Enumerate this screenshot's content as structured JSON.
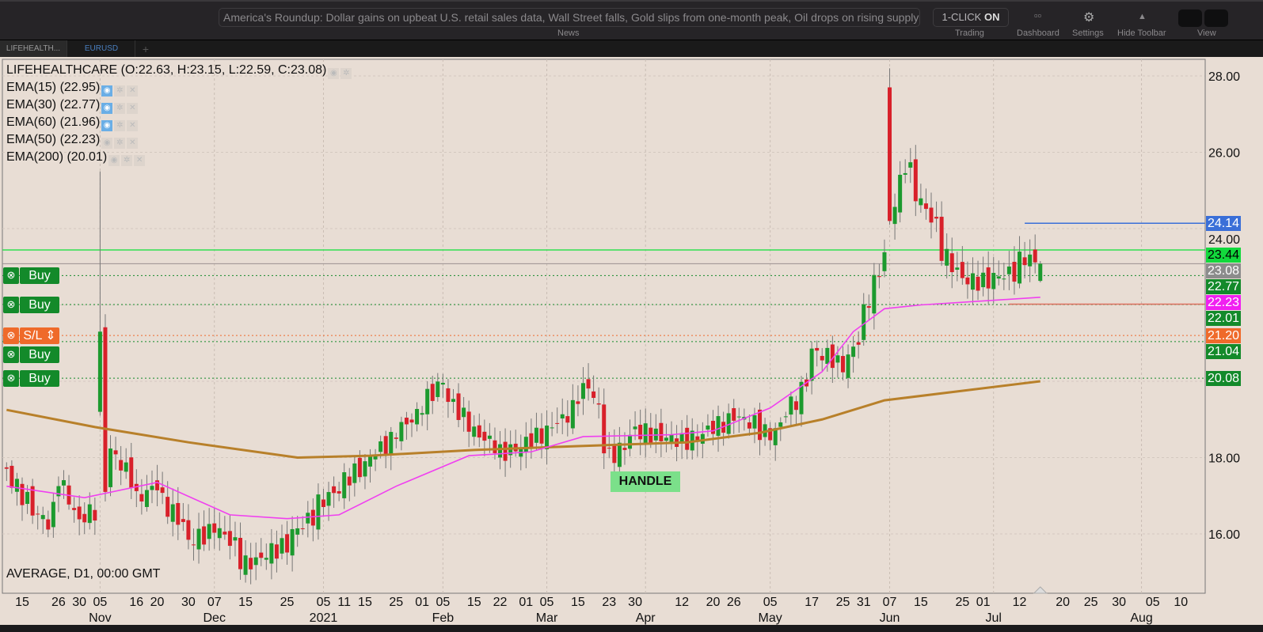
{
  "toolbar": {
    "news_text": "America's Roundup: Dollar gains on upbeat U.S. retail sales data, Wall Street falls, Gold slips from one-month peak, Oil drops on rising supply concerns",
    "news_label": "News",
    "oneclick_prefix": "1-CLICK",
    "oneclick_state": "ON",
    "trading_label": "Trading",
    "dashboard_label": "Dashboard",
    "settings_label": "Settings",
    "hide_toolbar_label": "Hide Toolbar",
    "view_label": "View"
  },
  "tabs": [
    {
      "label": "LIFEHEALTH...",
      "active": true
    },
    {
      "label": "EURUSD",
      "active": false
    },
    {
      "label": "+"
    }
  ],
  "legend": {
    "symbol": "LIFEHEALTHCARE (O:22.63, H:23.15, L:22.59, C:23.08)",
    "indicators": [
      {
        "label": "EMA(15) (22.95)",
        "visible": true
      },
      {
        "label": "EMA(30) (22.77)",
        "visible": true
      },
      {
        "label": "EMA(60) (21.96)",
        "visible": true
      },
      {
        "label": "EMA(50) (22.23)",
        "visible": false
      },
      {
        "label": "EMA(200) (20.01)",
        "visible": false
      }
    ]
  },
  "footer_label": "AVERAGE, D1, 00:00 GMT",
  "annotation": "HANDLE",
  "orders": [
    {
      "label": "Buy",
      "price": 22.77,
      "type": "buy"
    },
    {
      "label": "Buy",
      "price": 22.01,
      "type": "buy"
    },
    {
      "label": "Buy",
      "price": 21.04,
      "type": "buy"
    },
    {
      "label": "S/L",
      "price": 21.2,
      "type": "sl"
    },
    {
      "label": "Buy",
      "price": 20.08,
      "type": "buy"
    }
  ],
  "price_tags": [
    {
      "text": "24.14",
      "color": "#3a6fd8"
    },
    {
      "text": "23.44",
      "color": "#12d83c",
      "fg": "#000"
    },
    {
      "text": "23.08",
      "color": "#8c8c8c"
    },
    {
      "text": "22.77",
      "color": "#138a2a"
    },
    {
      "text": "22.23",
      "color": "#f020f0"
    },
    {
      "text": "22.01",
      "color": "#138a2a"
    },
    {
      "text": "21.04",
      "color": "#138a2a"
    },
    {
      "text": "21.20",
      "color": "#ef6a2a"
    },
    {
      "text": "20.08",
      "color": "#138a2a"
    }
  ],
  "colors": {
    "up": "#1c9a2e",
    "down": "#d8202a",
    "ema_short": "#f040f0",
    "ema_long": "#b8802a",
    "resistance": "#30e050",
    "target": "#3a6fd8"
  },
  "chart_data": {
    "type": "candlestick",
    "y_ticks": [
      "28.00",
      "26.00",
      "24.00",
      "18.00",
      "16.00"
    ],
    "ylim": [
      15,
      28.5
    ],
    "x_ticks": [
      [
        "2020-10-15",
        "15"
      ],
      [
        "2020-10-26",
        "26"
      ],
      [
        "2020-10-30",
        "30"
      ],
      [
        "2020-11-05",
        "05"
      ],
      [
        "2020-11-16",
        "16"
      ],
      [
        "2020-11-20",
        "20"
      ],
      [
        "2020-11-30",
        "30"
      ],
      [
        "2020-12-07",
        "07"
      ],
      [
        "2020-12-15",
        "15"
      ],
      [
        "2020-12-25",
        "25"
      ],
      [
        "2021-01-05",
        "05"
      ],
      [
        "2021-01-11",
        "11"
      ],
      [
        "2021-01-15",
        "15"
      ],
      [
        "2021-01-25",
        "25"
      ],
      [
        "2021-02-01",
        "01"
      ],
      [
        "2021-02-05",
        "05"
      ],
      [
        "2021-02-15",
        "15"
      ],
      [
        "2021-02-22",
        "22"
      ],
      [
        "2021-03-01",
        "01"
      ],
      [
        "2021-03-05",
        "05"
      ],
      [
        "2021-03-15",
        "15"
      ],
      [
        "2021-03-23",
        "23"
      ],
      [
        "2021-03-30",
        "30"
      ],
      [
        "2021-04-12",
        "12"
      ],
      [
        "2021-04-20",
        "20"
      ],
      [
        "2021-04-26",
        "26"
      ],
      [
        "2021-05-05",
        "05"
      ],
      [
        "2021-05-17",
        "17"
      ],
      [
        "2021-05-25",
        "25"
      ],
      [
        "2021-05-31",
        "31"
      ],
      [
        "2021-06-07",
        "07"
      ],
      [
        "2021-06-15",
        "15"
      ],
      [
        "2021-06-25",
        "25"
      ],
      [
        "2021-07-01",
        "01"
      ],
      [
        "2021-07-12",
        "12"
      ],
      [
        "2021-07-20",
        "20"
      ],
      [
        "2021-07-25",
        "25"
      ],
      [
        "2021-07-30",
        "30"
      ],
      [
        "2021-08-05",
        "05"
      ],
      [
        "2021-08-10",
        "10"
      ]
    ],
    "month_labels": [
      [
        "2020-11-05",
        "Nov"
      ],
      [
        "2020-12-07",
        "Dec"
      ],
      [
        "2021-01-05",
        "2021"
      ],
      [
        "2021-02-05",
        "Feb"
      ],
      [
        "2021-03-05",
        "Mar"
      ],
      [
        "2021-04-01",
        "Apr"
      ],
      [
        "2021-05-05",
        "May"
      ],
      [
        "2021-06-07",
        "Jun"
      ],
      [
        "2021-07-05",
        "Jul"
      ],
      [
        "2021-08-03",
        "Aug"
      ]
    ],
    "close_path": [
      [
        "2020-10-12",
        17.6
      ],
      [
        "2020-10-15",
        17.0
      ],
      [
        "2020-10-22",
        16.3
      ],
      [
        "2020-10-26",
        17.5
      ],
      [
        "2020-10-30",
        16.3
      ],
      [
        "2020-11-04",
        16.6
      ],
      [
        "2020-11-09",
        18.2
      ],
      [
        "2020-11-16",
        16.9
      ],
      [
        "2020-11-20",
        17.3
      ],
      [
        "2020-11-30",
        15.8
      ],
      [
        "2020-12-07",
        16.2
      ],
      [
        "2020-12-15",
        15.2
      ],
      [
        "2020-12-25",
        15.7
      ],
      [
        "2021-01-05",
        16.9
      ],
      [
        "2021-01-13",
        17.6
      ],
      [
        "2021-01-25",
        18.7
      ],
      [
        "2021-02-01",
        19.4
      ],
      [
        "2021-02-05",
        20.0
      ],
      [
        "2021-02-12",
        18.9
      ],
      [
        "2021-02-22",
        18.1
      ],
      [
        "2021-03-01",
        18.4
      ],
      [
        "2021-03-10",
        19.0
      ],
      [
        "2021-03-17",
        19.9
      ],
      [
        "2021-03-23",
        18.0
      ],
      [
        "2021-03-30",
        18.7
      ],
      [
        "2021-04-12",
        18.4
      ],
      [
        "2021-04-20",
        18.8
      ],
      [
        "2021-04-26",
        19.1
      ],
      [
        "2021-05-05",
        18.6
      ],
      [
        "2021-05-12",
        19.5
      ],
      [
        "2021-05-17",
        20.8
      ],
      [
        "2021-05-25",
        20.4
      ],
      [
        "2021-05-31",
        21.8
      ],
      [
        "2021-06-04",
        23.3
      ],
      [
        "2021-06-07",
        24.2
      ],
      [
        "2021-06-10",
        25.7
      ],
      [
        "2021-06-16",
        24.5
      ],
      [
        "2021-06-21",
        23.4
      ],
      [
        "2021-06-25",
        22.7
      ],
      [
        "2021-07-01",
        22.6
      ],
      [
        "2021-07-09",
        22.85
      ],
      [
        "2021-07-13",
        23.25
      ],
      [
        "2021-07-16",
        23.08
      ]
    ],
    "special_candles": [
      {
        "date": "2020-11-05",
        "o": 19.2,
        "h": 25.5,
        "l": 19.1,
        "c": 21.3
      },
      {
        "date": "2021-06-07",
        "o": 27.7,
        "h": 28.2,
        "l": 24.1,
        "c": 24.2
      },
      {
        "date": "2021-07-16",
        "o": 22.63,
        "h": 23.15,
        "l": 22.59,
        "c": 23.08
      }
    ],
    "ema_short": [
      [
        "2020-10-12",
        17.25
      ],
      [
        "2020-11-02",
        16.95
      ],
      [
        "2020-11-20",
        17.35
      ],
      [
        "2020-12-10",
        16.5
      ],
      [
        "2020-12-25",
        16.4
      ],
      [
        "2021-01-08",
        16.5
      ],
      [
        "2021-01-25",
        17.25
      ],
      [
        "2021-02-12",
        18.05
      ],
      [
        "2021-03-02",
        18.15
      ],
      [
        "2021-03-16",
        18.55
      ],
      [
        "2021-04-08",
        18.6
      ],
      [
        "2021-04-20",
        18.7
      ],
      [
        "2021-05-05",
        19.3
      ],
      [
        "2021-05-19",
        20.25
      ],
      [
        "2021-05-27",
        21.3
      ],
      [
        "2021-06-04",
        21.9
      ],
      [
        "2021-06-15",
        22.0
      ],
      [
        "2021-07-16",
        22.2
      ]
    ],
    "ema_long": [
      [
        "2020-10-12",
        19.25
      ],
      [
        "2020-11-04",
        18.8
      ],
      [
        "2020-11-30",
        18.4
      ],
      [
        "2020-12-29",
        18.0
      ],
      [
        "2021-01-18",
        18.05
      ],
      [
        "2021-02-15",
        18.2
      ],
      [
        "2021-03-15",
        18.3
      ],
      [
        "2021-04-13",
        18.4
      ],
      [
        "2021-05-03",
        18.65
      ],
      [
        "2021-05-19",
        19.0
      ],
      [
        "2021-06-04",
        19.5
      ],
      [
        "2021-07-16",
        20.0
      ]
    ],
    "hlines": [
      {
        "price": 24.14,
        "style": "solid",
        "color": "#3a6fd8",
        "from": "2021-07-13"
      },
      {
        "price": 23.44,
        "style": "solid",
        "color": "#30e050"
      },
      {
        "price": 23.08,
        "style": "solid",
        "color": "#9a9090"
      },
      {
        "price": 22.77,
        "style": "dotted",
        "color": "#138a2a"
      },
      {
        "price": 22.01,
        "style": "dotted",
        "color": "#138a2a"
      },
      {
        "price": 22.02,
        "style": "solid",
        "color": "#e07060",
        "from": "2021-07-08"
      },
      {
        "price": 21.2,
        "style": "dotted",
        "color": "#ef6a2a"
      },
      {
        "price": 21.04,
        "style": "dotted",
        "color": "#138a2a"
      },
      {
        "price": 20.08,
        "style": "dotted",
        "color": "#138a2a"
      }
    ]
  }
}
